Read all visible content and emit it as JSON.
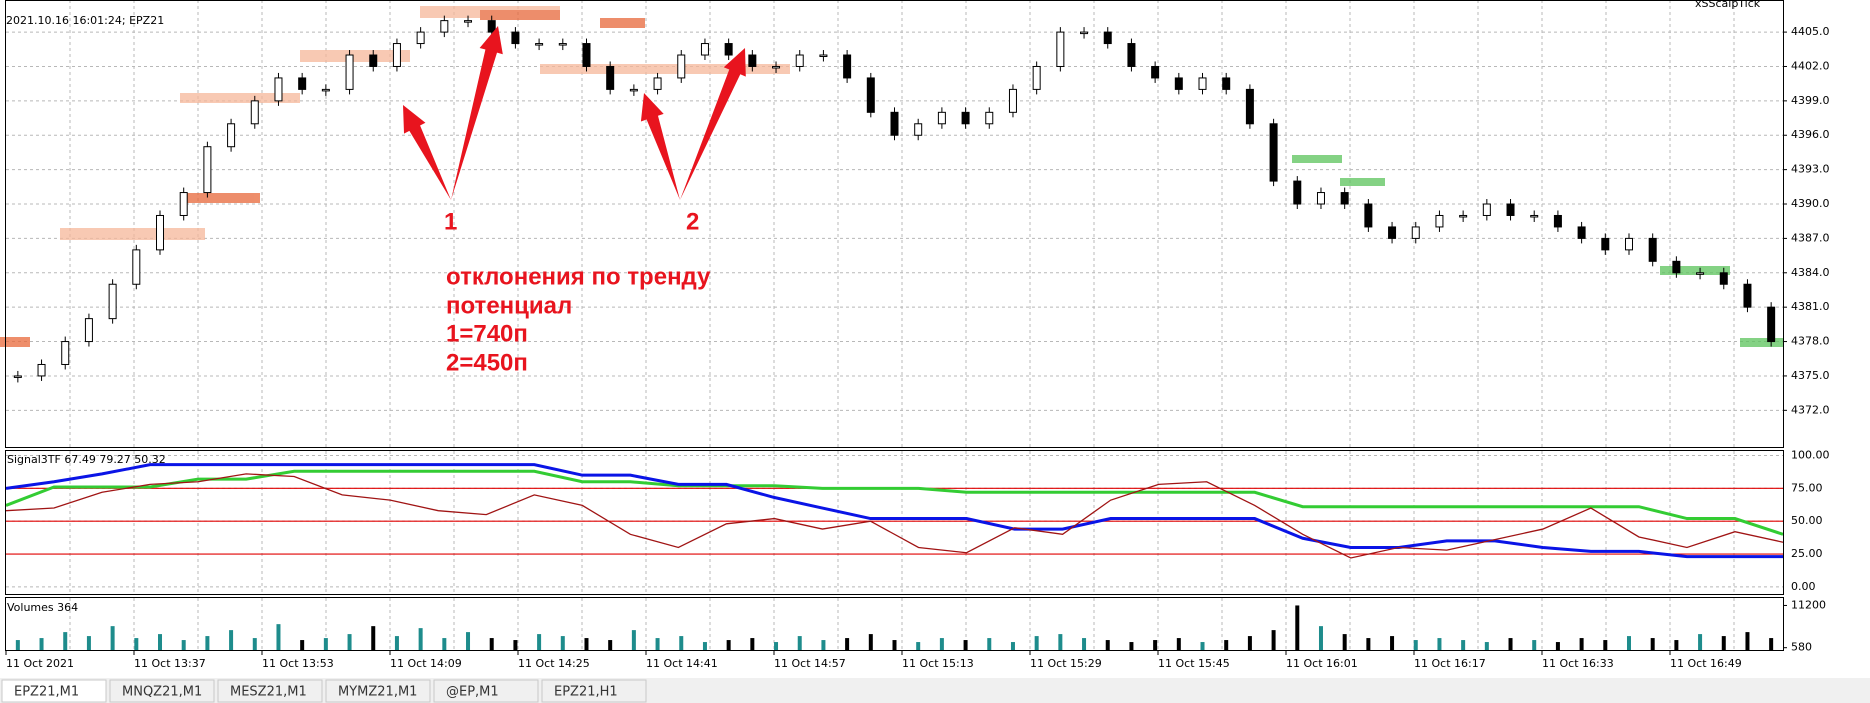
{
  "header": {
    "info": "2021.10.16 16:01:24; EPZ21",
    "brand": "xSScalpTick"
  },
  "price": {
    "type": "candlestick",
    "values": [
      4375,
      4376,
      4378,
      4380,
      4383,
      4386,
      4389,
      4391,
      4395,
      4397,
      4399,
      4401,
      4400,
      4400,
      4403,
      4402,
      4404,
      4405,
      4406,
      4406,
      4405,
      4404,
      4404,
      4404,
      4402,
      4400,
      4400,
      4401,
      4403,
      4404,
      4403,
      4402,
      4402,
      4403,
      4403,
      4401,
      4398,
      4396,
      4397,
      4398,
      4397,
      4398,
      4400,
      4402,
      4405,
      4405,
      4404,
      4402,
      4401,
      4400,
      4401,
      4400,
      4397,
      4392,
      4390,
      4391,
      4390,
      4388,
      4387,
      4388,
      4389,
      4389,
      4390,
      4389,
      4389,
      4388,
      4387,
      4386,
      4387,
      4385,
      4384,
      4384,
      4383,
      4381,
      4378
    ],
    "ylim": [
      4368.8,
      4407.8
    ],
    "yticks": [
      {
        "value": 4405,
        "label": "4405.0"
      },
      {
        "value": 4402,
        "label": "4402.0"
      },
      {
        "value": 4399,
        "label": "4399.0"
      },
      {
        "value": 4396,
        "label": "4396.0"
      },
      {
        "value": 4393,
        "label": "4393.0"
      },
      {
        "value": 4390,
        "label": "4390.0"
      },
      {
        "value": 4387,
        "label": "4387.0"
      },
      {
        "value": 4384,
        "label": "4384.0"
      },
      {
        "value": 4381,
        "label": "4381.0"
      },
      {
        "value": 4378,
        "label": "4378.0"
      },
      {
        "value": 4375,
        "label": "4375.0"
      },
      {
        "value": 4372,
        "label": "4372.0"
      }
    ]
  },
  "annotations": {
    "label1": "1",
    "label2": "2",
    "lines": [
      "отклонения по тренду",
      "потенциал",
      "1=740п",
      "2=450п"
    ]
  },
  "indicator": {
    "label": "Signal3TF 67.49 79.27 50.32",
    "ylim": [
      -5.4,
      103.4
    ],
    "yticks": [
      {
        "value": 100,
        "label": "100.00"
      },
      {
        "value": 75,
        "label": "75.00"
      },
      {
        "value": 50,
        "label": "50.00"
      },
      {
        "value": 25,
        "label": "25.00"
      },
      {
        "value": 0,
        "label": "0.00"
      }
    ],
    "levels": [
      75,
      50,
      25
    ],
    "series": [
      {
        "color": "#33cc33",
        "values": [
          62,
          76,
          76,
          76,
          82,
          82,
          88,
          88,
          88,
          88,
          88,
          88,
          80,
          80,
          77,
          77,
          77,
          75,
          75,
          75,
          72,
          72,
          72,
          72,
          72,
          72,
          72,
          61,
          61,
          61,
          61,
          61,
          61,
          61,
          61,
          52,
          52,
          40
        ]
      },
      {
        "color": "#0a14e6",
        "values": [
          75,
          80,
          86,
          93,
          93,
          93,
          93,
          93,
          93,
          93,
          93,
          93,
          85,
          85,
          78,
          78,
          68,
          60,
          52,
          52,
          52,
          44,
          44,
          52,
          52,
          52,
          52,
          37,
          30,
          30,
          35,
          35,
          30,
          27,
          27,
          23,
          23,
          23
        ]
      },
      {
        "color": "#a01414",
        "values": [
          58,
          60,
          72,
          78,
          80,
          86,
          84,
          70,
          66,
          58,
          55,
          70,
          62,
          40,
          30,
          48,
          52,
          44,
          50,
          30,
          26,
          45,
          40,
          66,
          78,
          80,
          62,
          40,
          22,
          30,
          28,
          36,
          44,
          60,
          38,
          30,
          42,
          34
        ]
      }
    ]
  },
  "volumes": {
    "label": "Volumes 364",
    "ylim": [
      0,
      13075
    ],
    "yticks": [
      11200,
      580
    ],
    "values": [
      2500,
      3000,
      4500,
      3500,
      6000,
      3000,
      4000,
      2500,
      3500,
      5000,
      3000,
      6500,
      2500,
      3000,
      4000,
      6000,
      3500,
      5500,
      3000,
      4500,
      3000,
      2500,
      4000,
      3500,
      3000,
      2500,
      5000,
      3000,
      3500,
      2000,
      2500,
      3000,
      2000,
      3500,
      2500,
      3000,
      4000,
      2500,
      2000,
      3000,
      2500,
      3000,
      2000,
      3500,
      4000,
      3000,
      2500,
      2000,
      2500,
      3000,
      2000,
      2500,
      3500,
      5000,
      11200,
      6000,
      4000,
      3000,
      3500,
      2500,
      3000,
      2500,
      2000,
      3000,
      2500,
      2000,
      3000,
      2500,
      3500,
      3000,
      2500,
      4000,
      3500,
      4500,
      3000
    ]
  },
  "time_axis": {
    "labels": [
      "11 Oct 2021",
      "11 Oct 13:37",
      "11 Oct 13:53",
      "11 Oct 14:09",
      "11 Oct 14:25",
      "11 Oct 14:41",
      "11 Oct 14:57",
      "11 Oct 15:13",
      "11 Oct 15:29",
      "11 Oct 15:45",
      "11 Oct 16:01",
      "11 Oct 16:17",
      "11 Oct 16:33",
      "11 Oct 16:49"
    ]
  },
  "tabs": [
    "EPZ21,M1",
    "MNQZ21,M1",
    "MESZ21,M1",
    "MYMZ21,M1",
    "@EP,M1",
    "EPZ21,H1"
  ]
}
